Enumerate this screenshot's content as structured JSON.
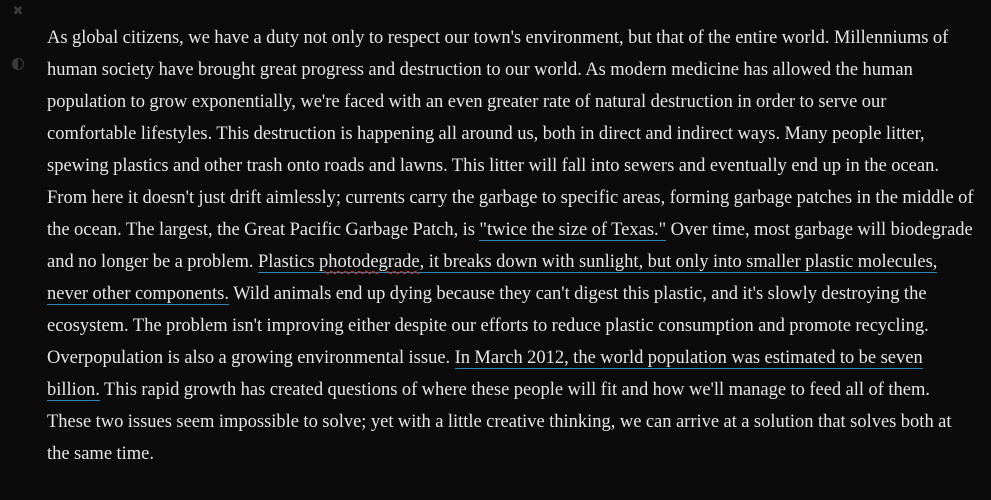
{
  "toolbar": {
    "close_icon": "close-icon",
    "close_glyph": "✖",
    "contrast_icon": "contrast-icon"
  },
  "article": {
    "seg1": "As global citizens, we have a duty not only to respect our town's environment, but that of the entire world. Millenniums of human society have brought great progress and destruction to our world. As modern medicine has allowed the human population to grow exponentially, we're faced with an even greater rate of natural destruction in order to serve our comfortable lifestyles. This destruction is happening all around us, both in direct and indirect ways. Many people litter, spewing plastics and other trash onto roads and lawns. This litter will fall into sewers and eventually end up in the ocean. From here it doesn't just drift aimlessly; currents carry the garbage to specific areas, forming garbage patches in the middle of the ocean. The largest, the Great Pacific Garbage Patch, is ",
    "link1": "\"twice the size of Texas.\"",
    "seg2": " Over time, most garbage will biodegrade and no longer be a problem. ",
    "link2_a": "Plastics ",
    "link2_spell": "photodegrade",
    "link2_b": ", it breaks down with sunlight, but only into smaller plastic molecules, never other components.",
    "seg3": " Wild animals end up dying because they can't digest this plastic, and it's slowly destroying the ecosystem. The problem isn't improving either despite our efforts to reduce plastic consumption and promote recycling. Overpopulation is also a growing environmental issue. ",
    "link3": "In March 2012, the world population was estimated to be seven billion.",
    "seg4": " This rapid growth has created questions of where these people will fit and how we'll manage to feed all of them. These two issues seem impossible to solve; yet with a little creative thinking, we can arrive at a solution that solves both at the same time."
  },
  "colors": {
    "background": "#0b0b0b",
    "text": "#e6e6e6",
    "link_underline": "#2f86b8",
    "spellcheck": "#c0392b"
  }
}
